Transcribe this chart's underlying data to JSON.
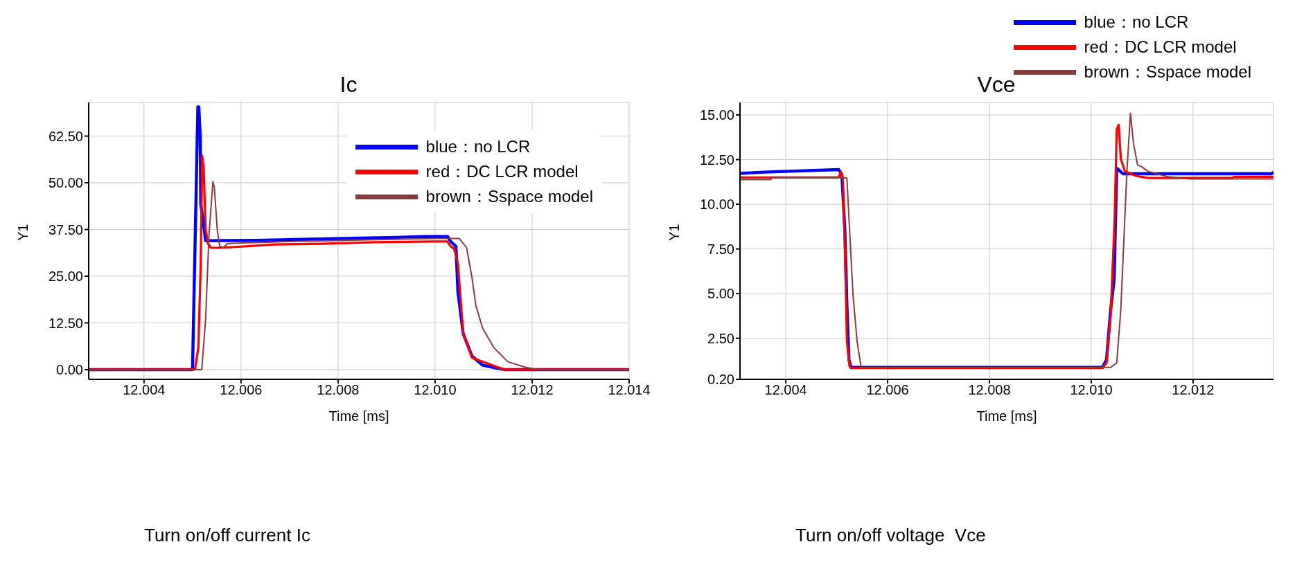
{
  "chart_data": [
    {
      "type": "line",
      "title": "Ic",
      "xlabel": "Time [ms]",
      "ylabel": "Y1",
      "legend": "top right",
      "grid": true,
      "xlim": [
        12.00286,
        12.014
      ],
      "xticks": [
        {
          "value": 12.004,
          "label": "12.004"
        },
        {
          "value": 12.006,
          "label": "12.006"
        },
        {
          "value": 12.008,
          "label": "12.008"
        },
        {
          "value": 12.01,
          "label": "12.010"
        },
        {
          "value": 12.012,
          "label": "12.012"
        },
        {
          "value": 12.014,
          "label": "12.014"
        }
      ],
      "ylim": [
        -2.6,
        71.5
      ],
      "yticks": [
        {
          "value": 0,
          "label": "0.00"
        },
        {
          "value": 12.5,
          "label": "12.50"
        },
        {
          "value": 25,
          "label": "25.00"
        },
        {
          "value": 37.5,
          "label": "37.50"
        },
        {
          "value": 50,
          "label": "50.00"
        },
        {
          "value": 62.5,
          "label": "62.50"
        }
      ],
      "annotations": [
        "Turn on/off current Ic"
      ],
      "series": [
        {
          "name": "blue：no LCR",
          "color": "#0000ff",
          "x": [
            12.00286,
            12.005,
            12.00511,
            12.00513,
            12.00516,
            12.00517,
            12.00522,
            12.00527,
            12.00632,
            12.00811,
            12.00921,
            12.00979,
            12.01026,
            12.01032,
            12.01043,
            12.01047,
            12.01058,
            12.01076,
            12.01098,
            12.01124,
            12.01143,
            12.014
          ],
          "values": [
            0,
            0,
            70.3,
            70.3,
            62.3,
            44.3,
            39.8,
            34.5,
            34.6,
            35.1,
            35.4,
            35.6,
            35.6,
            34.3,
            33,
            20.9,
            9.6,
            3.6,
            1.2,
            0.5,
            0,
            0
          ]
        },
        {
          "name": "red：DC LCR model",
          "color": "#ff0000",
          "x": [
            12.00286,
            12.00505,
            12.00512,
            12.00517,
            12.0052,
            12.00523,
            12.00527,
            12.00532,
            12.00538,
            12.0056,
            12.00671,
            12.00767,
            12.00877,
            12.00995,
            12.01025,
            12.01032,
            12.01039,
            12.01047,
            12.01058,
            12.01076,
            12.01143,
            12.014
          ],
          "values": [
            0,
            0,
            5.9,
            28.5,
            57.2,
            54,
            37.5,
            33.7,
            32.6,
            32.6,
            33.5,
            33.7,
            34.1,
            34.3,
            34.3,
            33,
            32.4,
            28.5,
            9.6,
            3.2,
            0,
            0
          ]
        },
        {
          "name": "brown：Sspace model",
          "color": "#8b3a3a",
          "x": [
            12.00286,
            12.00519,
            12.00527,
            12.00534,
            12.00542,
            12.00545,
            12.00551,
            12.00556,
            12.00564,
            12.00571,
            12.00582,
            12.00708,
            12.00818,
            12.00929,
            12.01003,
            12.0105,
            12.01065,
            12.01076,
            12.01084,
            12.01098,
            12.01121,
            12.0115,
            12.01187,
            12.01216,
            12.014
          ],
          "values": [
            0,
            0,
            13.4,
            36,
            50.3,
            48.8,
            37.5,
            33,
            32.6,
            33.7,
            33.8,
            34.3,
            34.6,
            34.9,
            35.1,
            35.1,
            32.6,
            24.7,
            17.2,
            11.1,
            5.9,
            2.1,
            0.6,
            0,
            0
          ]
        }
      ]
    },
    {
      "type": "line",
      "title": "Vce",
      "xlabel": "Time [ms]",
      "ylabel": "Y1",
      "legend": "top",
      "grid": true,
      "xlim": [
        12.0031,
        12.01358
      ],
      "xticks": [
        {
          "value": 12.004,
          "label": "12.004"
        },
        {
          "value": 12.006,
          "label": "12.006"
        },
        {
          "value": 12.008,
          "label": "12.008"
        },
        {
          "value": 12.01,
          "label": "12.010"
        },
        {
          "value": 12.012,
          "label": "12.012"
        }
      ],
      "ylim": [
        0.2,
        15.7
      ],
      "yticks": [
        {
          "value": 0.2,
          "label": "0.20"
        },
        {
          "value": 2.5,
          "label": "2.50"
        },
        {
          "value": 5,
          "label": "5.00"
        },
        {
          "value": 7.5,
          "label": "7.50"
        },
        {
          "value": 10,
          "label": "10.00"
        },
        {
          "value": 12.5,
          "label": "12.50"
        },
        {
          "value": 15,
          "label": "15.00"
        }
      ],
      "annotations": [
        "Turn on/off voltage  Vce"
      ],
      "series": [
        {
          "name": "blue：no LCR",
          "color": "#0000ff",
          "x": [
            12.0031,
            12.00358,
            12.00504,
            12.0051,
            12.00516,
            12.0052,
            12.00524,
            12.00528,
            12.01022,
            12.0103,
            12.01038,
            12.01045,
            12.0105,
            12.01062,
            12.01354,
            12.01358
          ],
          "values": [
            11.73,
            11.8,
            11.94,
            11.68,
            8.56,
            4.41,
            1.3,
            0.87,
            0.87,
            1.3,
            4.07,
            5.8,
            12.02,
            11.71,
            11.71,
            11.8
          ]
        },
        {
          "name": "red：DC LCR model",
          "color": "#ff0000",
          "x": [
            12.0031,
            12.00504,
            12.00508,
            12.00512,
            12.00516,
            12.0052,
            12.00525,
            12.00528,
            12.01022,
            12.0103,
            12.01038,
            12.01046,
            12.0105,
            12.01054,
            12.01058,
            12.01066,
            12.01087,
            12.01111,
            12.01277,
            12.01281,
            12.01358
          ],
          "values": [
            11.5,
            11.5,
            11.82,
            11.5,
            7.53,
            2.33,
            0.95,
            0.83,
            0.83,
            1.12,
            3.72,
            9.26,
            14.19,
            14.45,
            12.54,
            11.85,
            11.6,
            11.47,
            11.47,
            11.54,
            11.54
          ]
        },
        {
          "name": "brown：Sspace model",
          "color": "#8b3a3a",
          "x": [
            12.0031,
            12.0037,
            12.00374,
            12.00504,
            12.0052,
            12.00524,
            12.00532,
            12.0054,
            12.00548,
            12.01038,
            12.0105,
            12.01058,
            12.01066,
            12.0107,
            12.01077,
            12.01083,
            12.01091,
            12.01099,
            12.01111,
            12.01151,
            12.01192,
            12.01358
          ],
          "values": [
            11.38,
            11.38,
            11.5,
            11.52,
            11.47,
            9.26,
            4.93,
            2.33,
            0.87,
            0.87,
            1.12,
            4.07,
            9.26,
            11.85,
            15.1,
            13.4,
            12.2,
            12.1,
            11.85,
            11.54,
            11.42,
            11.42
          ]
        }
      ]
    }
  ]
}
